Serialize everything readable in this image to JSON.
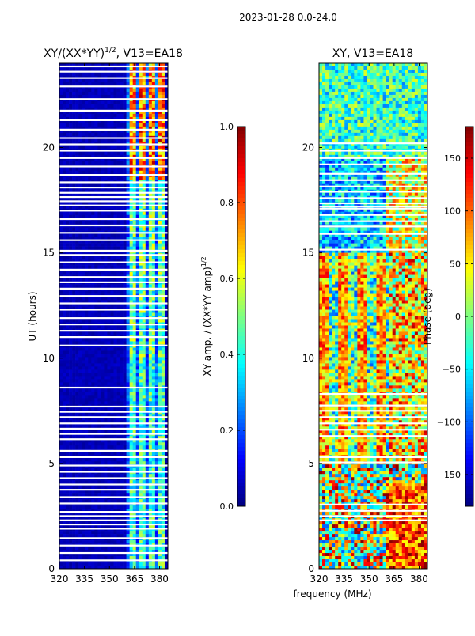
{
  "figure": {
    "suptitle": "2023-01-28 0.0-24.0",
    "shared_xlabel": "frequency (MHz)"
  },
  "chart_data": [
    {
      "type": "heatmap",
      "title_main": "XY/(XX*YY)",
      "title_exp": "1/2",
      "title_tail": ", V13=EA18",
      "ylabel": "UT (hours)",
      "xlim": [
        320,
        385
      ],
      "ylim": [
        0,
        24
      ],
      "xticks": [
        320,
        335,
        350,
        365,
        380
      ],
      "yticks": [
        0,
        5,
        10,
        15,
        20
      ],
      "colorbar": {
        "label_main": "XY amp. / (XX*YY amp)",
        "label_exp": "1/2",
        "range": [
          0.0,
          1.0
        ],
        "ticks": [
          "0.0",
          "0.2",
          "0.4",
          "0.6",
          "0.8",
          "1.0"
        ],
        "tick_values": [
          0.0,
          0.2,
          0.4,
          0.6,
          0.8,
          1.0
        ],
        "colormap": "jet"
      },
      "flagged_ut_hours": [
        0.4,
        0.75,
        1.1,
        1.45,
        1.9,
        2.1,
        2.3,
        2.5,
        2.7,
        3.1,
        3.4,
        3.75,
        4.0,
        4.3,
        4.6,
        4.9,
        5.3,
        5.6,
        6.15,
        6.4,
        6.65,
        6.9,
        7.2,
        7.45,
        7.7,
        8.6,
        10.6,
        11.0,
        11.3,
        11.6,
        11.9,
        12.3,
        12.6,
        12.95,
        13.3,
        13.6,
        13.85,
        14.2,
        14.55,
        14.9,
        15.1,
        15.6,
        15.95,
        16.3,
        16.6,
        17.0,
        17.25,
        17.45,
        17.65,
        17.85,
        18.1,
        18.35,
        18.7,
        19.1,
        19.5,
        19.85,
        20.15,
        20.45,
        20.85,
        21.3,
        21.75,
        22.3,
        22.9,
        23.3,
        23.6,
        23.85
      ]
    },
    {
      "type": "heatmap",
      "title_main": "XY, V13=EA18",
      "ylabel": "",
      "xlim": [
        320,
        385
      ],
      "ylim": [
        0,
        24
      ],
      "xticks": [
        320,
        335,
        350,
        365,
        380
      ],
      "yticks": [
        0,
        5,
        10,
        15,
        20
      ],
      "colorbar": {
        "label": "Phase (deg)",
        "range": [
          -180,
          180
        ],
        "ticks": [
          "−150",
          "−100",
          "−50",
          "0",
          "50",
          "100",
          "150"
        ],
        "tick_values": [
          -150,
          -100,
          -50,
          0,
          50,
          100,
          150
        ],
        "colormap": "jet"
      },
      "flagged_ut_hours": [
        2.3,
        2.5,
        2.75,
        3.05,
        5.05,
        5.3,
        6.3,
        6.6,
        6.9,
        7.2,
        7.5,
        7.75,
        8.3,
        15.15,
        15.9,
        16.25,
        16.5,
        16.8,
        17.1,
        17.2,
        17.35,
        17.6,
        17.9,
        18.15,
        18.45,
        18.75,
        19.2,
        19.5,
        19.85,
        20.2
      ]
    }
  ]
}
